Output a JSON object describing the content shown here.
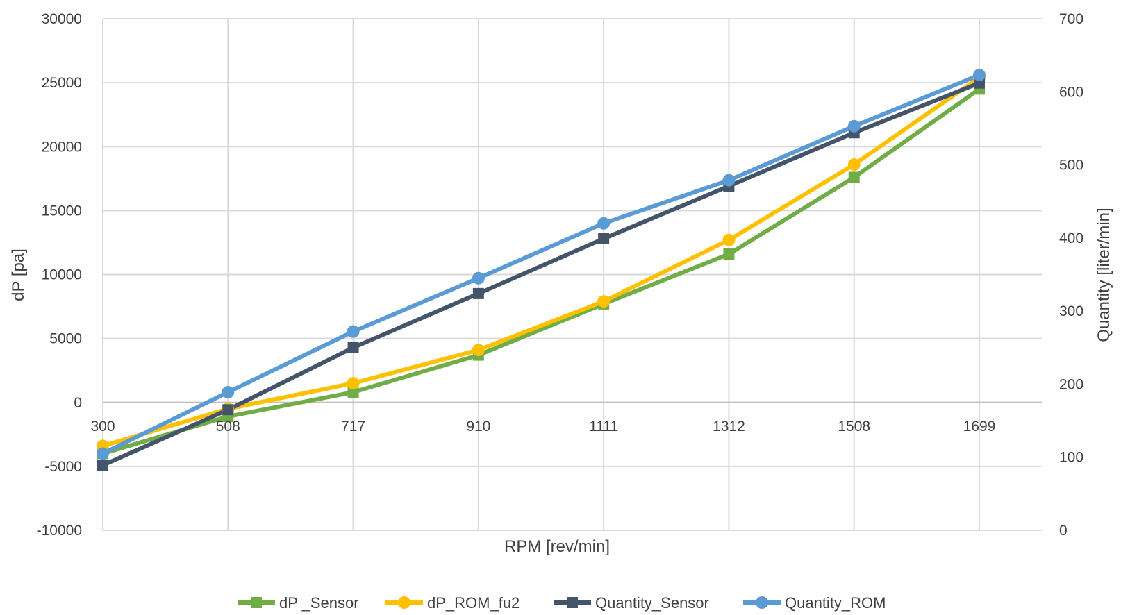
{
  "chart_data": {
    "type": "line",
    "title": "",
    "xlabel": "RPM [rev/min]",
    "ylabel": "dP [pa]",
    "y2label": "Quantity [liter/min]",
    "categories": [
      "300",
      "508",
      "717",
      "910",
      "1111",
      "1312",
      "1508",
      "1699"
    ],
    "ylim": [
      -10000,
      30000
    ],
    "y_ticks": [
      "-10000",
      "-5000",
      "0",
      "5000",
      "10000",
      "15000",
      "20000",
      "25000",
      "30000"
    ],
    "y2lim": [
      0,
      700
    ],
    "y2_ticks": [
      "0",
      "100",
      "200",
      "300",
      "400",
      "500",
      "600",
      "700"
    ],
    "grid": true,
    "legend_position": "bottom",
    "series": [
      {
        "name": "dP _Sensor",
        "axis": "left",
        "marker": "square",
        "color": "#70AD47",
        "values": [
          -4000,
          -1100,
          800,
          3700,
          7700,
          11600,
          17600,
          24500
        ]
      },
      {
        "name": "dP_ROM_fu2",
        "axis": "left",
        "marker": "circle",
        "color": "#FFC000",
        "values": [
          -3400,
          -500,
          1500,
          4100,
          7900,
          12700,
          18600,
          25400
        ]
      },
      {
        "name": "Quantity_Sensor",
        "axis": "right",
        "marker": "square",
        "color": "#44546A",
        "values": [
          89,
          165,
          250,
          324,
          399,
          471,
          544,
          612
        ]
      },
      {
        "name": "Quantity_ROM",
        "axis": "right",
        "marker": "circle",
        "color": "#5B9BD5",
        "values": [
          105,
          189,
          272,
          345,
          420,
          479,
          553,
          623
        ]
      }
    ]
  }
}
